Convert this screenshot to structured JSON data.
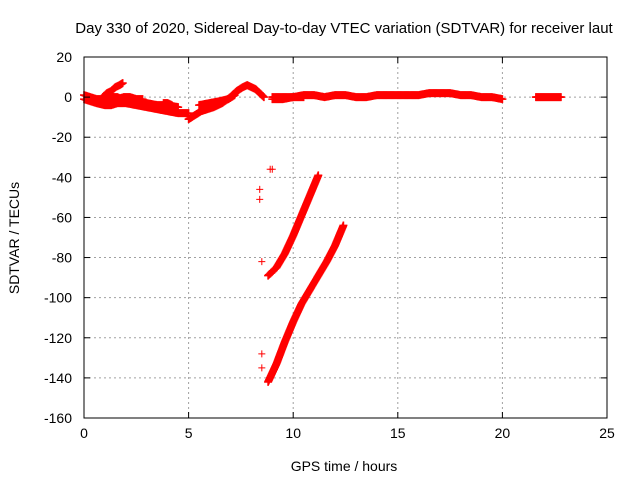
{
  "chart_data": {
    "type": "scatter",
    "title": "Day 330 of 2020, Sidereal Day-to-day VTEC variation (SDTVAR) for receiver laut",
    "xlabel": "GPS time / hours",
    "ylabel": "SDTVAR / TECUs",
    "xlim": [
      0,
      25
    ],
    "ylim": [
      -160,
      20
    ],
    "xticks": [
      "0",
      "5",
      "10",
      "15",
      "20",
      "25"
    ],
    "yticks": [
      "20",
      "0",
      "-20",
      "-40",
      "-60",
      "-80",
      "-100",
      "-120",
      "-140",
      "-160"
    ],
    "grid": true,
    "marker": "+",
    "color": "#ff0000",
    "segments": [
      {
        "x": [
          0.0,
          0.3,
          0.6,
          1.0,
          1.3,
          1.6,
          2.0,
          2.5,
          3.0,
          3.5,
          4.0,
          4.5,
          5.0
        ],
        "y": [
          -1,
          -2,
          -3,
          -4,
          -4,
          -3,
          -3,
          -4,
          -5,
          -6,
          -7,
          -8,
          -8
        ]
      },
      {
        "x": [
          0.0,
          0.3,
          0.6,
          1.0,
          1.3,
          1.6,
          2.0,
          2.5,
          3.0,
          3.5,
          4.0,
          4.5
        ],
        "y": [
          1,
          0,
          -1,
          -1,
          0,
          0,
          -2,
          -3,
          -3,
          -4,
          -4,
          -5
        ]
      },
      {
        "x": [
          0.9,
          1.1,
          1.3,
          1.5,
          1.7,
          1.85
        ],
        "y": [
          0,
          2,
          3,
          5,
          6,
          7
        ]
      },
      {
        "x": [
          1.3,
          1.6,
          1.9,
          2.2,
          2.5,
          2.8
        ],
        "y": [
          -2,
          -1,
          0,
          0,
          -1,
          -1
        ]
      },
      {
        "x": [
          3.8,
          4.0,
          4.2
        ],
        "y": [
          -3,
          -3,
          -4
        ]
      },
      {
        "x": [
          5.0,
          5.3,
          5.6,
          5.9,
          6.2,
          6.6,
          7.0,
          7.3,
          7.6,
          7.8,
          8.0,
          8.2,
          8.4,
          8.6
        ],
        "y": [
          -11,
          -9,
          -7,
          -6,
          -5,
          -3,
          0,
          3,
          5,
          6,
          5,
          4,
          2,
          0
        ]
      },
      {
        "x": [
          5.5,
          6.0,
          6.5,
          6.9,
          7.2
        ],
        "y": [
          -4,
          -3,
          -2,
          -1,
          1
        ]
      },
      {
        "x": [
          9.0,
          9.5,
          10.0,
          10.5,
          11.0,
          11.5,
          12.0,
          12.5,
          13.0,
          13.5,
          14.0,
          14.5,
          15.0,
          15.5,
          16.0,
          16.5,
          17.0,
          17.5,
          18.0,
          18.5,
          19.0,
          19.5,
          20.0
        ],
        "y": [
          0,
          0,
          0,
          1,
          1,
          0,
          1,
          1,
          0,
          0,
          1,
          1,
          1,
          1,
          1,
          2,
          2,
          2,
          1,
          1,
          0,
          0,
          -1
        ]
      },
      {
        "x": [
          9.0,
          9.5,
          10.0,
          10.5
        ],
        "y": [
          -1,
          -1,
          0,
          0
        ]
      },
      {
        "x": [
          21.6,
          21.9,
          22.2,
          22.5,
          22.8
        ],
        "y": [
          0,
          0,
          0,
          0,
          0
        ]
      },
      {
        "x": [
          8.8,
          9.2,
          9.6,
          10.0,
          10.4,
          10.8,
          11.2
        ],
        "y": [
          -89,
          -85,
          -78,
          -69,
          -59,
          -49,
          -39
        ]
      },
      {
        "x": [
          8.8,
          9.2,
          9.6,
          10.0,
          10.4,
          10.8,
          11.2,
          11.6,
          12.0,
          12.4
        ],
        "y": [
          -142,
          -133,
          -122,
          -112,
          -103,
          -96,
          -89,
          -82,
          -74,
          -64
        ]
      }
    ],
    "points": [
      {
        "x": 8.5,
        "y": 1
      },
      {
        "x": 8.4,
        "y": -46
      },
      {
        "x": 8.4,
        "y": -51
      },
      {
        "x": 8.5,
        "y": -82
      },
      {
        "x": 8.5,
        "y": -128
      },
      {
        "x": 8.5,
        "y": -135
      },
      {
        "x": 8.9,
        "y": -36
      },
      {
        "x": 9.0,
        "y": -36
      }
    ]
  }
}
